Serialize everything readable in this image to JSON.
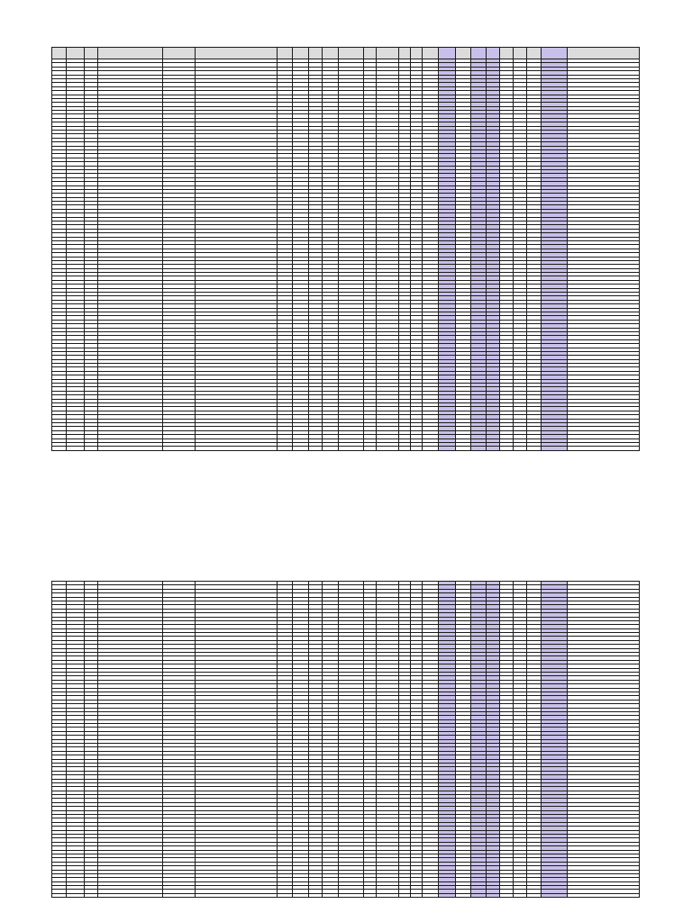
{
  "colors": {
    "header_fill": "#dcdcdc",
    "highlight_fill": "#c8c0e8",
    "grid_line": "#1a1a1a",
    "cell_fill": "#ffffff"
  },
  "spreadsheet": {
    "column_headers": [
      "",
      "",
      "",
      "",
      "",
      "",
      "",
      "",
      "",
      "",
      "",
      "",
      "",
      "",
      "",
      "",
      "",
      "",
      "",
      "",
      "",
      "",
      "",
      "",
      ""
    ],
    "highlighted_columns": [
      16,
      18,
      19,
      23
    ],
    "sheets": [
      {
        "name": "",
        "visible_rows": 99
      },
      {
        "name": "",
        "visible_rows": 80
      }
    ]
  }
}
